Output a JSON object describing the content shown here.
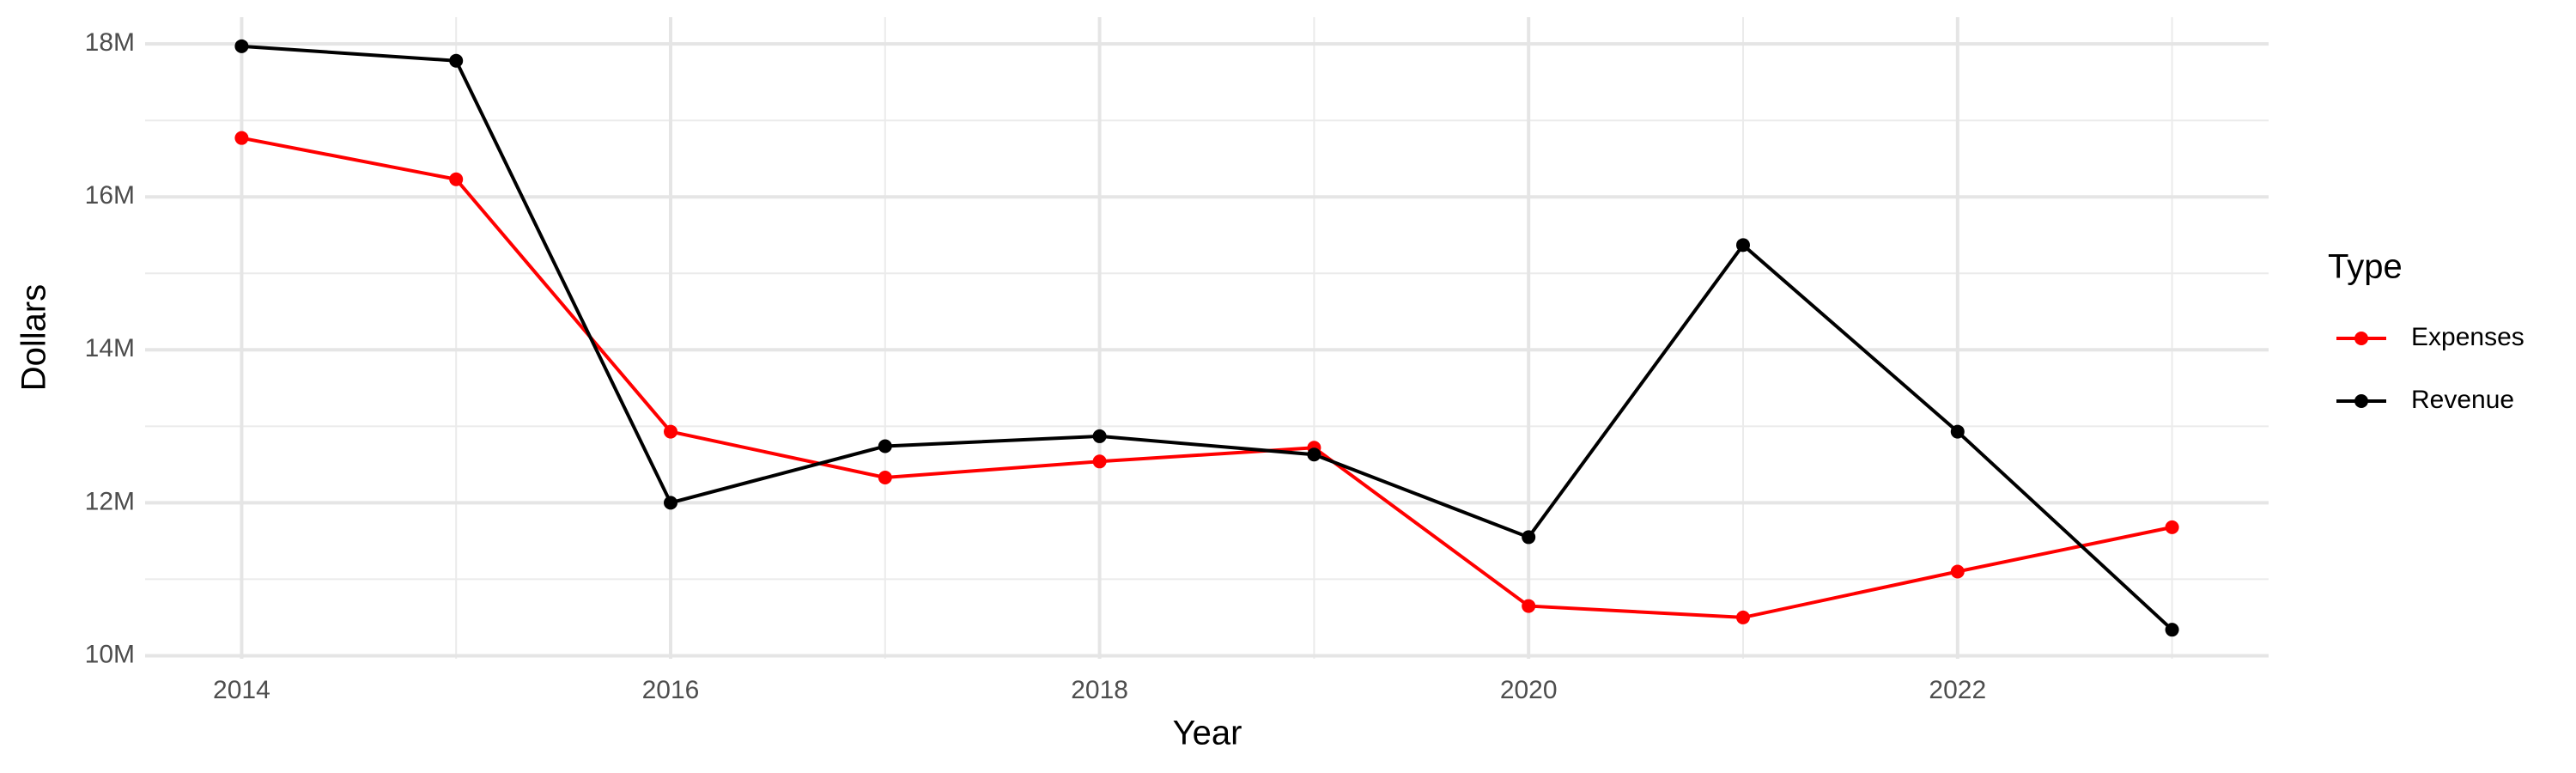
{
  "chart_data": {
    "type": "line",
    "x_label": "Year",
    "y_label": "Dollars",
    "legend_title": "Type",
    "legend_position": "right",
    "grid": true,
    "x": [
      2014,
      2015,
      2016,
      2017,
      2018,
      2019,
      2020,
      2021,
      2022,
      2023
    ],
    "series": [
      {
        "name": "Expenses",
        "color": "#ff0000",
        "values": [
          16770000,
          16230000,
          12930000,
          12330000,
          12540000,
          12720000,
          10650000,
          10500000,
          11100000,
          11680000
        ]
      },
      {
        "name": "Revenue",
        "color": "#000000",
        "values": [
          17970000,
          17780000,
          12000000,
          12740000,
          12870000,
          12630000,
          11550000,
          15370000,
          12930000,
          10340000
        ]
      }
    ],
    "xlim": [
      2013.55,
      2023.45
    ],
    "xticks": [
      2014,
      2016,
      2018,
      2020,
      2022
    ],
    "x_minor_ticks": [
      2015,
      2017,
      2019,
      2021,
      2023
    ],
    "ylim": [
      9960000,
      18350000
    ],
    "yticks": [
      {
        "value": 10000000,
        "label": "10M"
      },
      {
        "value": 12000000,
        "label": "12M"
      },
      {
        "value": 14000000,
        "label": "14M"
      },
      {
        "value": 16000000,
        "label": "16M"
      },
      {
        "value": 18000000,
        "label": "18M"
      }
    ],
    "y_minor_ticks": [
      11000000,
      13000000,
      15000000,
      17000000
    ]
  }
}
